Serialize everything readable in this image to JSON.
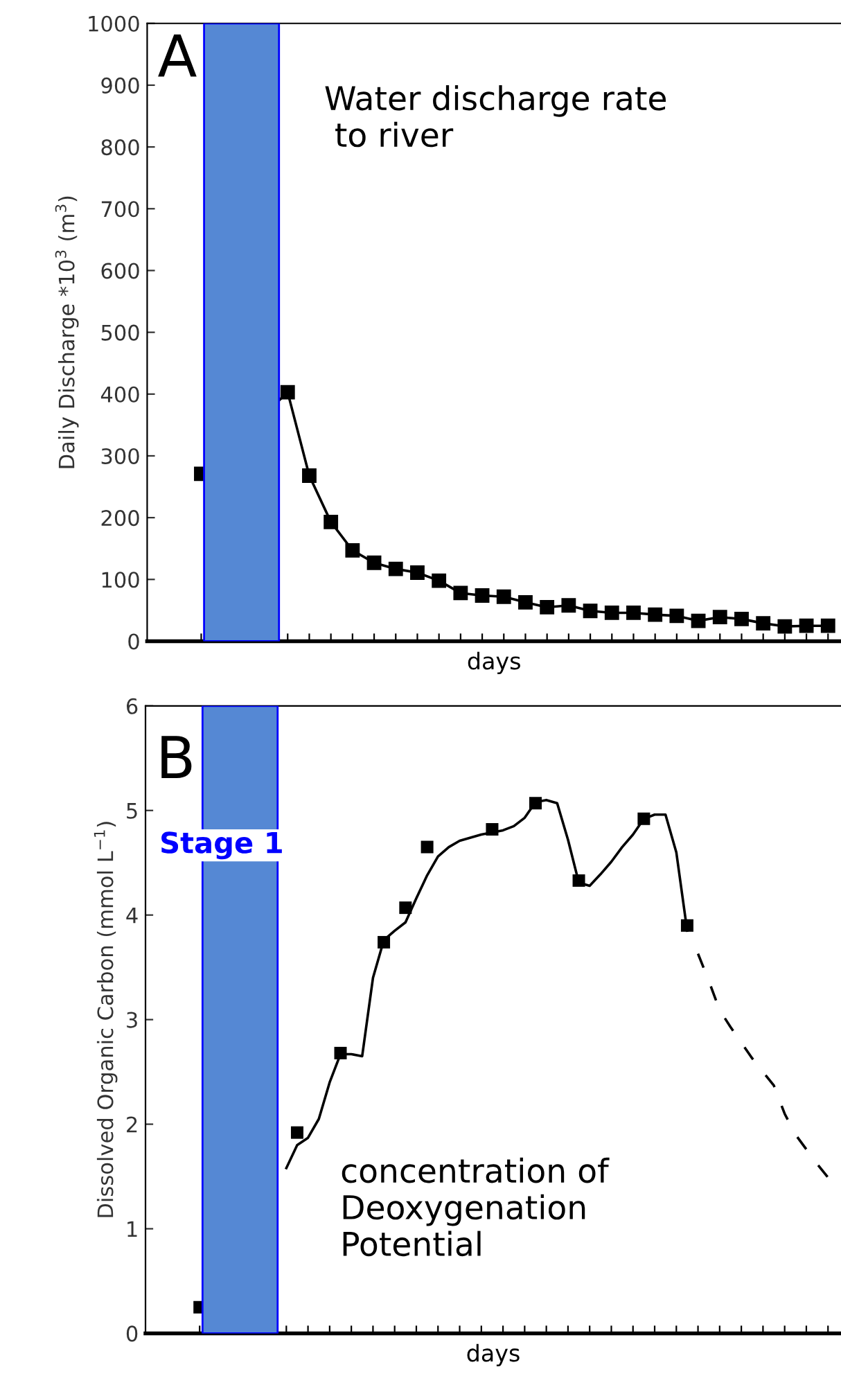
{
  "chart_data": [
    {
      "type": "line",
      "ylabel": "Daily Discharge *10$^{3}$ (m$^{3}$)",
      "xlabel": "days",
      "annotations": [
        "A",
        "Water discharge rate\n to river"
      ],
      "categories": [
        null,
        null,
        null,
        null,
        null,
        null,
        null,
        null,
        null,
        null,
        null,
        null,
        null,
        null,
        null,
        null,
        null,
        null,
        null,
        null,
        null,
        null,
        null,
        null,
        null,
        null,
        null,
        null,
        null,
        null
      ],
      "ylim": [
        0,
        1000
      ],
      "yticks": [
        0,
        100,
        200,
        300,
        400,
        500,
        600,
        700,
        800,
        900,
        1000
      ],
      "series": [
        {
          "color": "#000000",
          "marker": "square",
          "line_style": "solid",
          "values": [
            271,
            null,
            null,
            null,
            403,
            268,
            193,
            147,
            127,
            117,
            111,
            98,
            78,
            74,
            72,
            63,
            55,
            58,
            49,
            46,
            46,
            43,
            41,
            33,
            39,
            36,
            29,
            24,
            25,
            25
          ]
        }
      ],
      "grid": false,
      "legend": false
    },
    {
      "type": "line",
      "ylabel": "Dissolved Organic Carbon (mmol L$^{−1}$)",
      "xlabel": "days",
      "annotations": [
        "B",
        "concentration of\nDeoxygenation\nPotential",
        "Stage 1"
      ],
      "categories": [
        null,
        null,
        null,
        null,
        null,
        null,
        null,
        null,
        null,
        null,
        null,
        null,
        null,
        null,
        null,
        null,
        null,
        null,
        null,
        null,
        null,
        null,
        null,
        null,
        null,
        null,
        null,
        null,
        null,
        null,
        null,
        null,
        null,
        null,
        null,
        null,
        null,
        null,
        null,
        null,
        null,
        null,
        null,
        null,
        null,
        null,
        null,
        null,
        null,
        null,
        null,
        null,
        null,
        null,
        null,
        null,
        null,
        null,
        null
      ],
      "ylim": [
        0,
        6
      ],
      "yticks": [
        0,
        1,
        2,
        3,
        4,
        5,
        6
      ],
      "series": [
        {
          "type": "line",
          "color": "#000000",
          "marker": "none",
          "line_style": "solid",
          "values": [
            null,
            null,
            null,
            null,
            null,
            null,
            null,
            null,
            1.58,
            1.8,
            1.87,
            2.05,
            2.4,
            2.67,
            2.67,
            2.65,
            3.4,
            3.76,
            3.85,
            3.93,
            4.16,
            4.38,
            4.56,
            4.65,
            4.71,
            4.74,
            4.77,
            4.79,
            4.81,
            4.85,
            4.93,
            5.08,
            5.1,
            5.07,
            4.72,
            4.31,
            4.28,
            4.39,
            4.51,
            4.65,
            4.77,
            4.92,
            4.96,
            4.96,
            4.6,
            3.85,
            null,
            null,
            null,
            null,
            null,
            null,
            null,
            null,
            null,
            null,
            null,
            null,
            null
          ]
        },
        {
          "type": "scatter",
          "color": "#000000",
          "marker": "square",
          "values": [
            0.25,
            null,
            null,
            null,
            null,
            null,
            null,
            null,
            null,
            1.92,
            null,
            null,
            null,
            2.68,
            null,
            null,
            null,
            3.74,
            null,
            4.07,
            null,
            4.65,
            null,
            null,
            null,
            null,
            null,
            4.82,
            null,
            null,
            null,
            5.07,
            null,
            null,
            null,
            4.33,
            null,
            null,
            null,
            null,
            null,
            4.92,
            null,
            null,
            null,
            3.9,
            null,
            null,
            null,
            null,
            null,
            null,
            null,
            null,
            null,
            null,
            null,
            null,
            null
          ]
        },
        {
          "type": "line",
          "color": "#000000",
          "marker": "none",
          "line_style": "dashed",
          "values": [
            null,
            null,
            null,
            null,
            null,
            null,
            null,
            null,
            null,
            null,
            null,
            null,
            null,
            null,
            null,
            null,
            null,
            null,
            null,
            null,
            null,
            null,
            null,
            null,
            null,
            null,
            null,
            null,
            null,
            null,
            null,
            null,
            null,
            null,
            null,
            null,
            null,
            null,
            null,
            null,
            null,
            null,
            null,
            null,
            null,
            null,
            3.63,
            3.37,
            3.09,
            2.93,
            2.78,
            2.63,
            2.5,
            2.37,
            2.1,
            1.9,
            1.76,
            1.62,
            1.49
          ]
        }
      ],
      "grid": false,
      "legend": false
    }
  ]
}
